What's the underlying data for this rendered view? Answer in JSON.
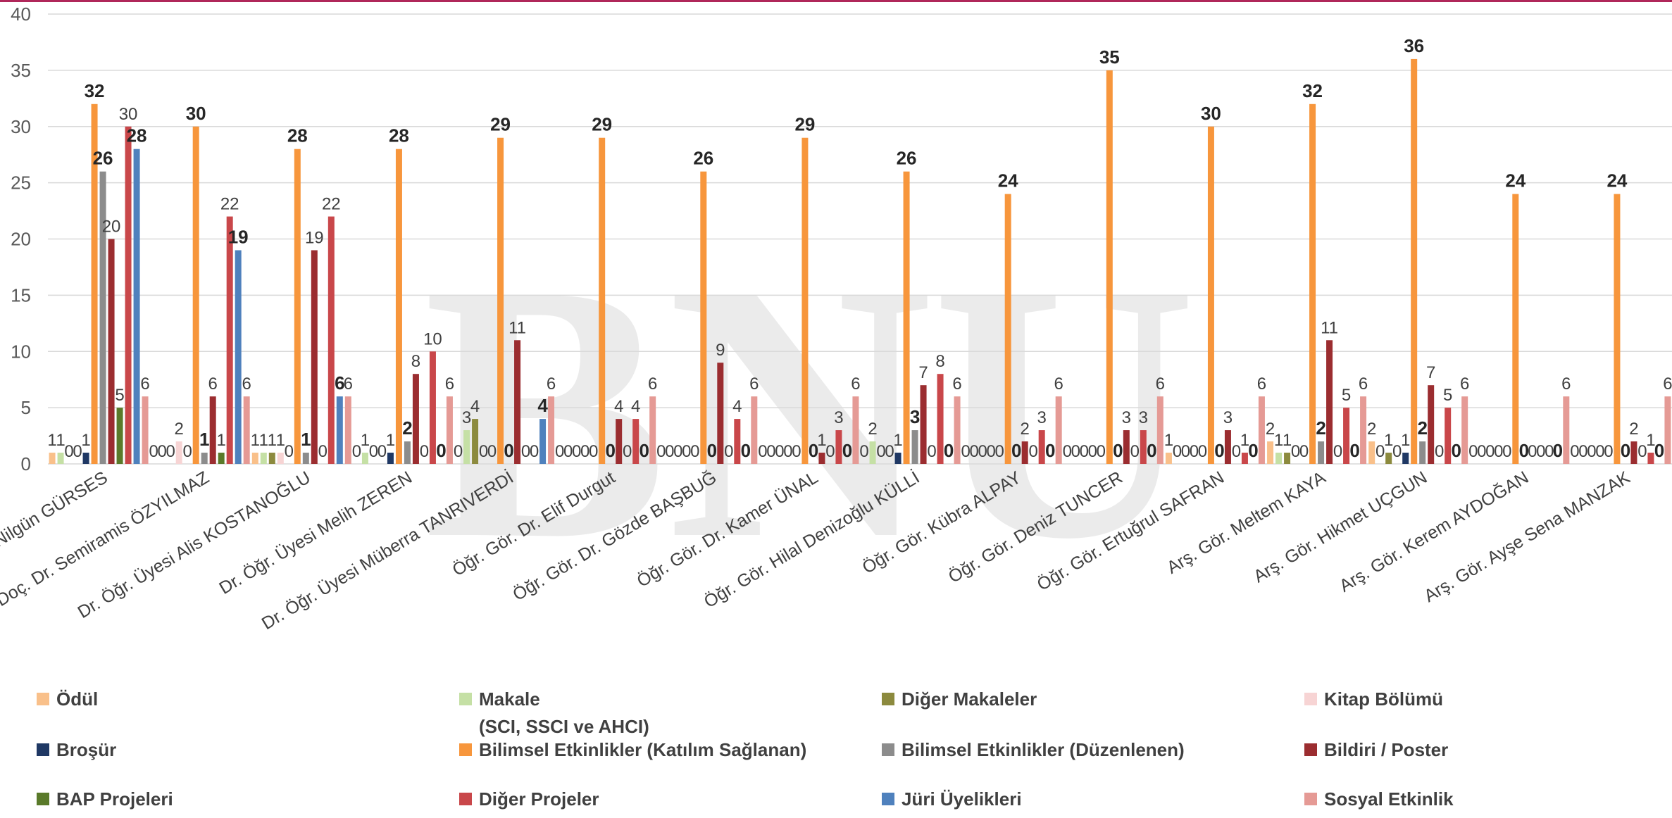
{
  "chart_data": {
    "type": "bar",
    "ylim": [
      0,
      40
    ],
    "yticks": [
      0,
      5,
      10,
      15,
      20,
      25,
      30,
      35,
      40
    ],
    "grid": true,
    "legend_position": "bottom",
    "watermark": "BNU",
    "categories": [
      "Dr. Öğr. Üyesi Nilgün GÜRSES",
      "Doç. Dr. Semiramis ÖZYILMAZ",
      "Dr. Öğr. Üyesi Alis KOSTANOĞLU",
      "Dr. Öğr. Üyesi Melih ZEREN",
      "Dr. Öğr. Üyesi Müberra TANRIVERDİ",
      "Öğr. Gör. Dr. Elif Durgut",
      "Öğr. Gör. Dr. Gözde BAŞBUĞ",
      "Öğr. Gör. Dr. Kamer ÜNAL",
      "Öğr. Gör. Hilal Denizoğlu KÜLLİ",
      "Öğr. Gör. Kübra ALPAY",
      "Öğr. Gör. Deniz TUNCER",
      "Öğr. Gör. Ertuğrul SAFRAN",
      "Arş. Gör. Meltem KAYA",
      "Arş. Gör. Hikmet UÇGUN",
      "Arş. Gör. Kerem AYDOĞAN",
      "Arş. Gör. Ayşe Sena MANZAK"
    ],
    "series": [
      {
        "name": "Ödül",
        "color": "#f9c08a",
        "values": [
          1,
          0,
          1,
          0,
          0,
          0,
          0,
          0,
          0,
          0,
          0,
          1,
          2,
          2,
          0,
          0
        ]
      },
      {
        "name": "Makale\n(SCI, SSCI ve AHCI)",
        "color": "#c5e0a5",
        "values": [
          1,
          0,
          1,
          1,
          3,
          0,
          0,
          0,
          2,
          0,
          0,
          0,
          1,
          0,
          0,
          0
        ]
      },
      {
        "name": "Diğer Makaleler",
        "color": "#8c8a3e",
        "values": [
          0,
          0,
          1,
          0,
          4,
          0,
          0,
          0,
          0,
          0,
          0,
          0,
          1,
          1,
          0,
          0
        ]
      },
      {
        "name": "Kitap Bölümü",
        "color": "#f7d4d4",
        "values": [
          0,
          2,
          1,
          0,
          0,
          0,
          0,
          0,
          0,
          0,
          0,
          0,
          0,
          0,
          0,
          0
        ]
      },
      {
        "name": "Broşür",
        "color": "#1f3864",
        "values": [
          1,
          0,
          0,
          1,
          0,
          0,
          0,
          0,
          1,
          0,
          0,
          0,
          0,
          1,
          0,
          0
        ]
      },
      {
        "name": "Bilimsel Etkinlikler (Katılım Sağlanan)",
        "color": "#f7963c",
        "values": [
          32,
          30,
          28,
          28,
          29,
          29,
          26,
          29,
          26,
          24,
          35,
          30,
          32,
          36,
          24,
          24
        ]
      },
      {
        "name": "Bilimsel Etkinlikler     (Düzenlenen)",
        "color": "#8c8c8c",
        "values": [
          26,
          1,
          1,
          2,
          0,
          0,
          0,
          0,
          3,
          0,
          0,
          0,
          2,
          2,
          0,
          0
        ]
      },
      {
        "name": "Bildiri / Poster",
        "color": "#9b2d30",
        "values": [
          20,
          6,
          19,
          8,
          11,
          4,
          9,
          1,
          7,
          2,
          3,
          3,
          11,
          7,
          0,
          2
        ]
      },
      {
        "name": "BAP Projeleri",
        "color": "#5a7a2a",
        "values": [
          5,
          1,
          0,
          0,
          0,
          0,
          0,
          0,
          0,
          0,
          0,
          0,
          0,
          0,
          0,
          0
        ]
      },
      {
        "name": "Diğer Projeler",
        "color": "#c9474a",
        "values": [
          30,
          22,
          22,
          10,
          0,
          4,
          4,
          3,
          8,
          3,
          3,
          1,
          5,
          5,
          0,
          1
        ]
      },
      {
        "name": "Jüri Üyelikleri",
        "color": "#4f81bd",
        "values": [
          28,
          19,
          6,
          0,
          4,
          0,
          0,
          0,
          0,
          0,
          0,
          0,
          0,
          0,
          0,
          0
        ]
      },
      {
        "name": "Sosyal Etkinlik",
        "color": "#e59a95",
        "values": [
          6,
          6,
          6,
          6,
          6,
          6,
          6,
          6,
          6,
          6,
          6,
          6,
          6,
          6,
          6,
          6
        ]
      }
    ]
  }
}
